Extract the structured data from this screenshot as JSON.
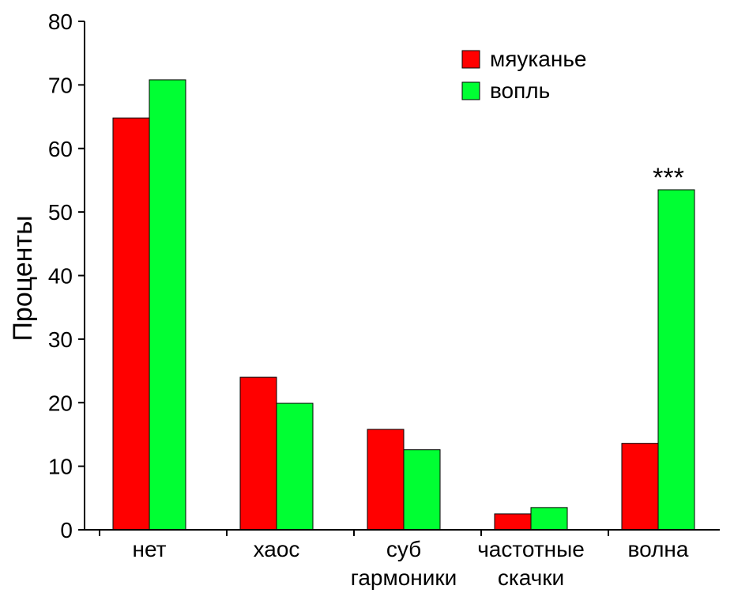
{
  "chart_data": {
    "type": "bar",
    "categories": [
      [
        "нет"
      ],
      [
        "хаос"
      ],
      [
        "суб",
        "гармоники"
      ],
      [
        "частотные",
        "скачки"
      ],
      [
        "волна"
      ]
    ],
    "series": [
      {
        "name": "мяуканье",
        "color": "#ff0000",
        "values": [
          64.8,
          24.0,
          15.8,
          2.5,
          13.6
        ]
      },
      {
        "name": "вопль",
        "color": "#00ff33",
        "values": [
          70.8,
          19.9,
          12.6,
          3.5,
          53.5
        ]
      }
    ],
    "ylabel": "Проценты",
    "xlabel": "",
    "ylim": [
      0,
      80
    ],
    "yticks": [
      0,
      10,
      20,
      30,
      40,
      50,
      60,
      70,
      80
    ],
    "legend_position": "top-right",
    "grid": false,
    "annotations": [
      {
        "category_index": 4,
        "series_index": 1,
        "text": "***"
      }
    ]
  }
}
